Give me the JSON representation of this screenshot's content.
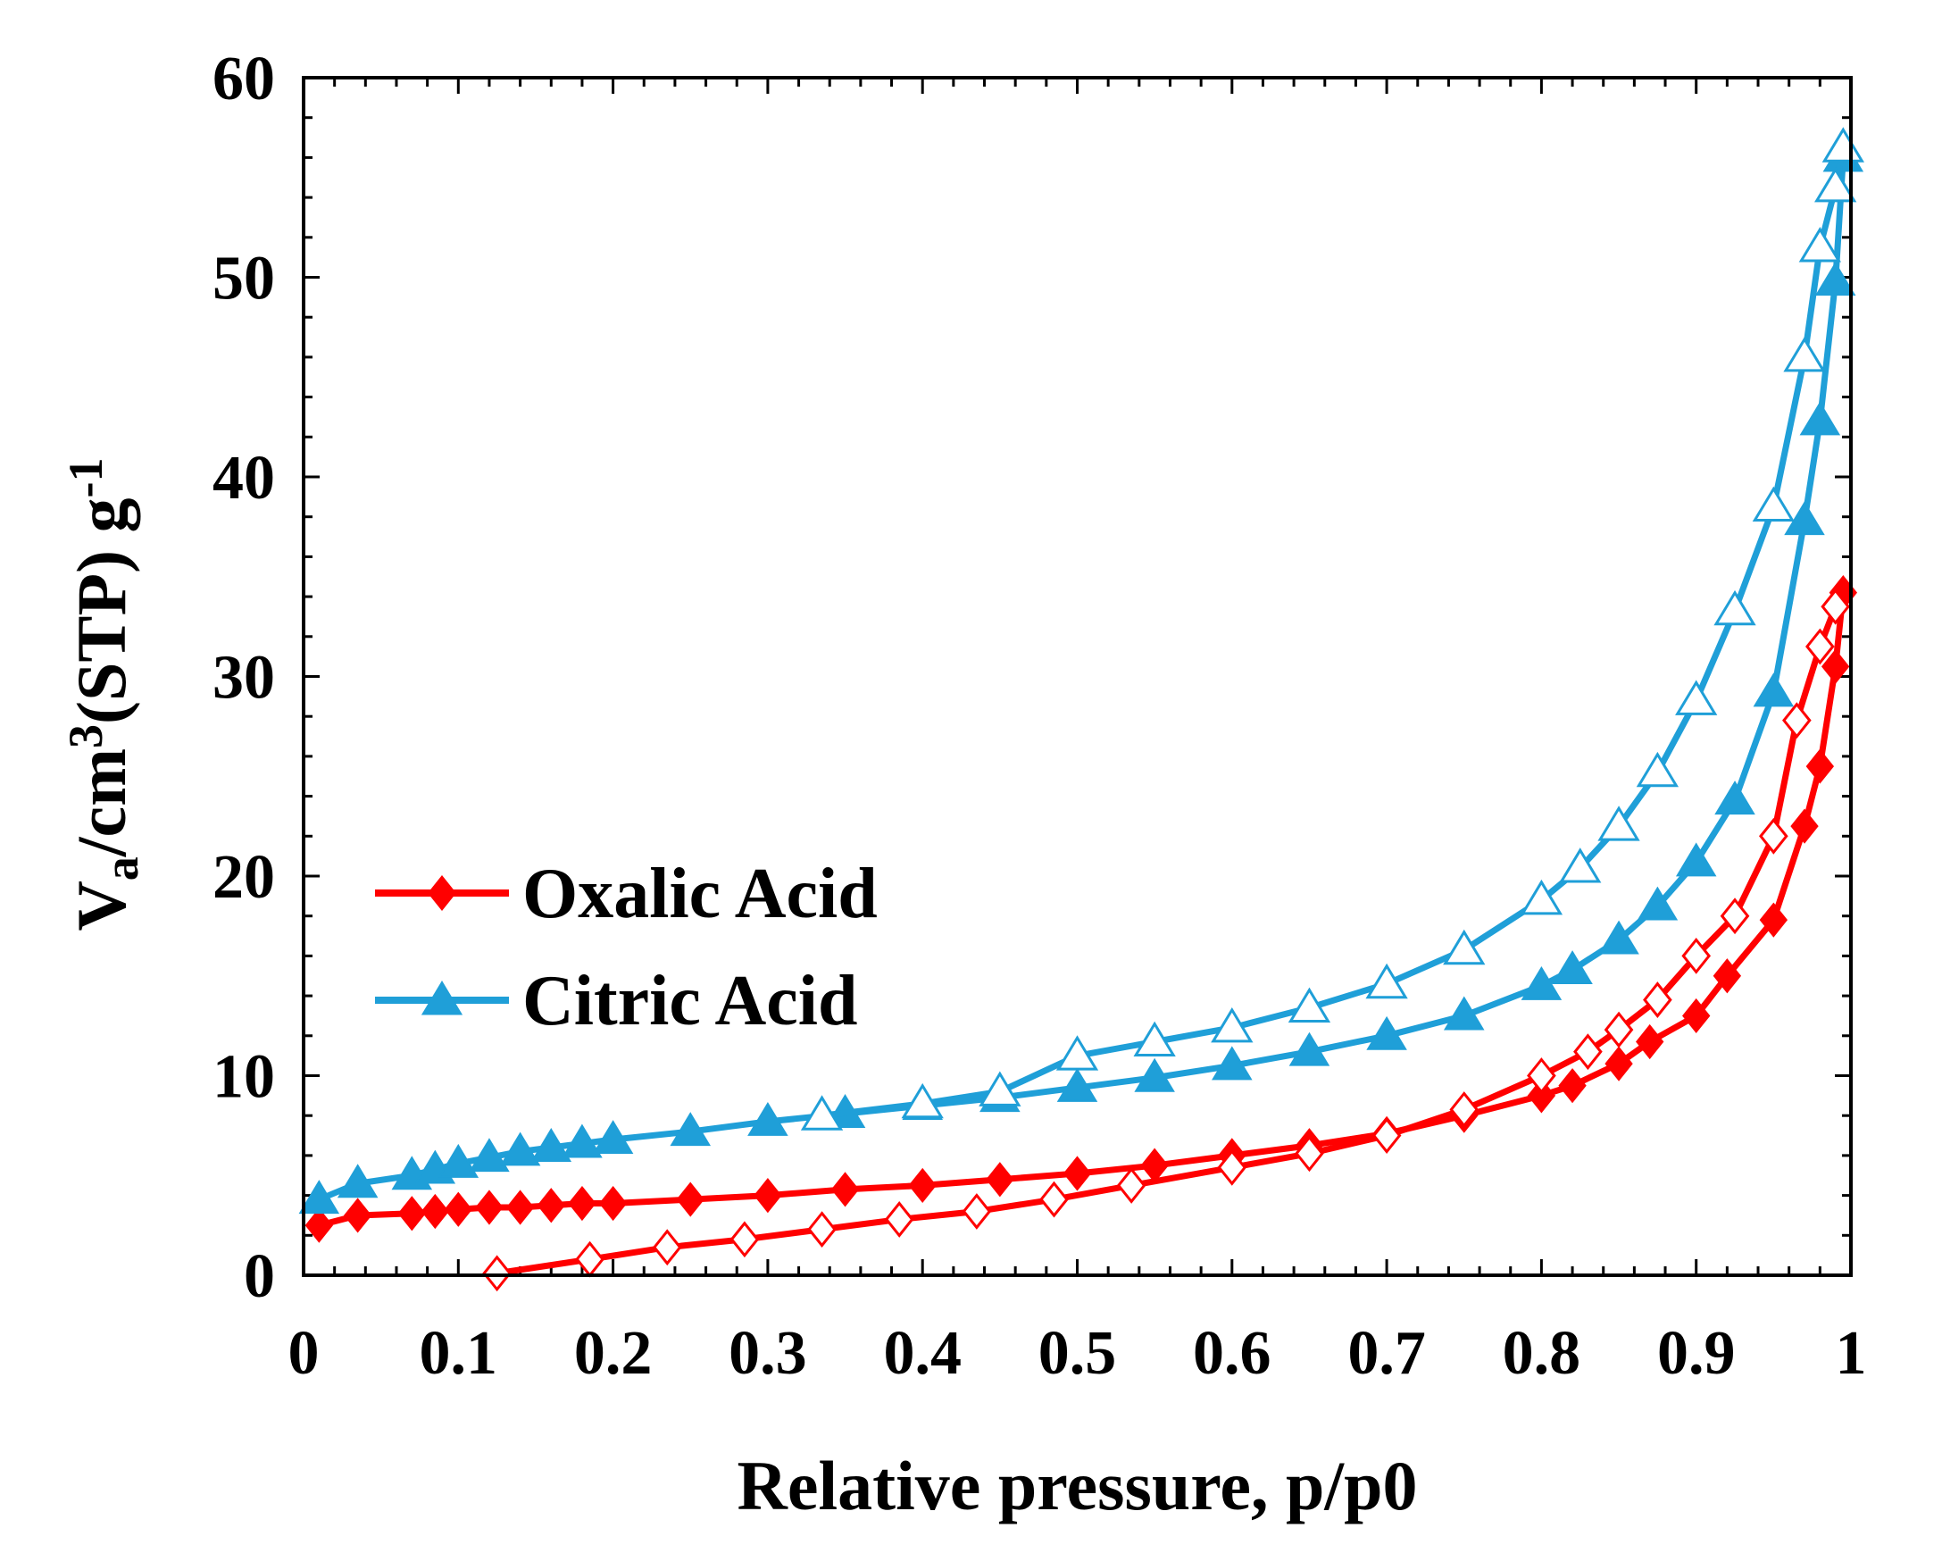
{
  "chart_data": {
    "type": "line",
    "xlabel": "Relative pressure, p/p0",
    "ylabel_parts": {
      "base": "V",
      "sub": "a",
      "unit": "/cm",
      "sup": "3",
      "rest": "(STP) g",
      "sup2": "-1"
    },
    "xlim": [
      0,
      1
    ],
    "ylim": [
      0,
      60
    ],
    "x_ticks": [
      0,
      0.1,
      0.2,
      0.3,
      0.4,
      0.5,
      0.6,
      0.7,
      0.8,
      0.9,
      1
    ],
    "x_tick_labels": [
      "0",
      "0.1",
      "0.2",
      "0.3",
      "0.4",
      "0.5",
      "0.6",
      "0.7",
      "0.8",
      "0.9",
      "1"
    ],
    "y_ticks": [
      0,
      10,
      20,
      30,
      40,
      50,
      60
    ],
    "y_tick_labels": [
      "0",
      "10",
      "20",
      "30",
      "40",
      "50",
      "60"
    ],
    "legend": {
      "position": "center-left",
      "entries": [
        "Oxalic Acid",
        "Citric Acid"
      ]
    },
    "series": [
      {
        "name": "Oxalic Acid",
        "branch": "adsorption",
        "color": "#ff0000",
        "marker": "diamond-filled",
        "x": [
          0.01,
          0.035,
          0.07,
          0.085,
          0.1,
          0.12,
          0.14,
          0.16,
          0.18,
          0.2,
          0.25,
          0.3,
          0.35,
          0.4,
          0.45,
          0.5,
          0.55,
          0.6,
          0.65,
          0.7,
          0.75,
          0.8,
          0.82,
          0.85,
          0.87,
          0.9,
          0.92,
          0.95,
          0.97,
          0.98,
          0.99,
          0.995
        ],
        "y": [
          2.5,
          3.0,
          3.1,
          3.2,
          3.3,
          3.4,
          3.4,
          3.5,
          3.6,
          3.6,
          3.8,
          4.0,
          4.3,
          4.5,
          4.8,
          5.1,
          5.5,
          6.0,
          6.5,
          7.1,
          8.0,
          9.0,
          9.5,
          10.6,
          11.7,
          13.0,
          15.0,
          17.8,
          22.5,
          25.5,
          30.5,
          34.2
        ]
      },
      {
        "name": "Oxalic Acid",
        "branch": "desorption",
        "color": "#ff0000",
        "marker": "diamond-open",
        "x": [
          0.125,
          0.185,
          0.235,
          0.285,
          0.335,
          0.385,
          0.435,
          0.485,
          0.535,
          0.6,
          0.65,
          0.7,
          0.75,
          0.8,
          0.83,
          0.85,
          0.875,
          0.9,
          0.925,
          0.95,
          0.965,
          0.98,
          0.99
        ],
        "y": [
          0.1,
          0.8,
          1.4,
          1.8,
          2.3,
          2.8,
          3.2,
          3.8,
          4.5,
          5.4,
          6.1,
          7.0,
          8.3,
          10.0,
          11.2,
          12.3,
          13.8,
          16.0,
          18.0,
          22.0,
          27.8,
          31.5,
          33.5
        ]
      },
      {
        "name": "Citric Acid",
        "branch": "adsorption",
        "color": "#1f9fd8",
        "marker": "triangle-filled",
        "x": [
          0.01,
          0.035,
          0.07,
          0.085,
          0.1,
          0.12,
          0.14,
          0.16,
          0.18,
          0.2,
          0.25,
          0.3,
          0.35,
          0.4,
          0.45,
          0.5,
          0.55,
          0.6,
          0.65,
          0.7,
          0.75,
          0.8,
          0.82,
          0.85,
          0.875,
          0.9,
          0.925,
          0.95,
          0.97,
          0.98,
          0.99,
          0.995
        ],
        "y": [
          3.8,
          4.6,
          5.0,
          5.3,
          5.6,
          5.9,
          6.2,
          6.4,
          6.6,
          6.8,
          7.2,
          7.7,
          8.1,
          8.5,
          8.9,
          9.4,
          9.9,
          10.5,
          11.2,
          12.0,
          13.0,
          14.5,
          15.3,
          16.8,
          18.5,
          20.7,
          23.8,
          29.2,
          37.8,
          42.8,
          49.8,
          56.0
        ]
      },
      {
        "name": "Citric Acid",
        "branch": "desorption",
        "color": "#1f9fd8",
        "marker": "triangle-open",
        "x": [
          0.335,
          0.4,
          0.45,
          0.5,
          0.55,
          0.6,
          0.65,
          0.7,
          0.75,
          0.8,
          0.825,
          0.85,
          0.875,
          0.9,
          0.925,
          0.95,
          0.97,
          0.98,
          0.99,
          0.995
        ],
        "y": [
          8.0,
          8.6,
          9.2,
          11.0,
          11.7,
          12.4,
          13.4,
          14.6,
          16.3,
          18.8,
          20.4,
          22.5,
          25.2,
          28.8,
          33.3,
          38.5,
          46.0,
          51.5,
          54.5,
          56.5
        ]
      }
    ]
  }
}
